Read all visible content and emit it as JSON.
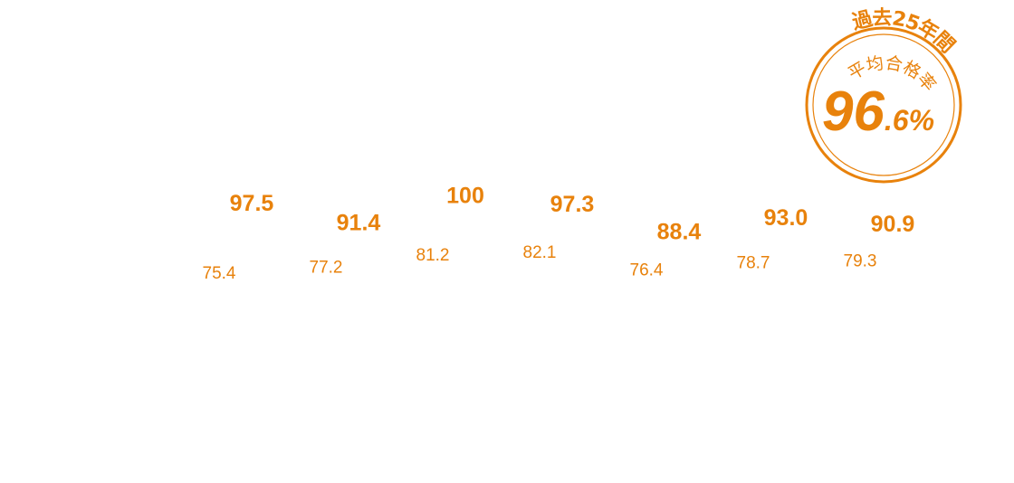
{
  "chart_data": {
    "type": "label-bar",
    "categories": [
      null,
      null,
      null,
      null,
      null,
      null,
      null
    ],
    "series": [
      {
        "color": "#e8820c",
        "values": [
          97.5,
          91.4,
          100,
          97.3,
          88.4,
          93.0,
          90.9
        ],
        "value_labels": [
          "97.5",
          "91.4",
          "100",
          "97.3",
          "88.4",
          "93.0",
          "90.9"
        ]
      },
      {
        "color": "#e8820c",
        "values": [
          75.4,
          77.2,
          81.2,
          82.1,
          76.4,
          78.7,
          79.3
        ],
        "value_labels": [
          "75.4",
          "77.2",
          "81.2",
          "82.1",
          "76.4",
          "78.7",
          "79.3"
        ]
      }
    ],
    "badge": {
      "caption": "過去25年間",
      "label": "平均合格率",
      "value": "96.6%",
      "color": "#e8820c"
    }
  }
}
